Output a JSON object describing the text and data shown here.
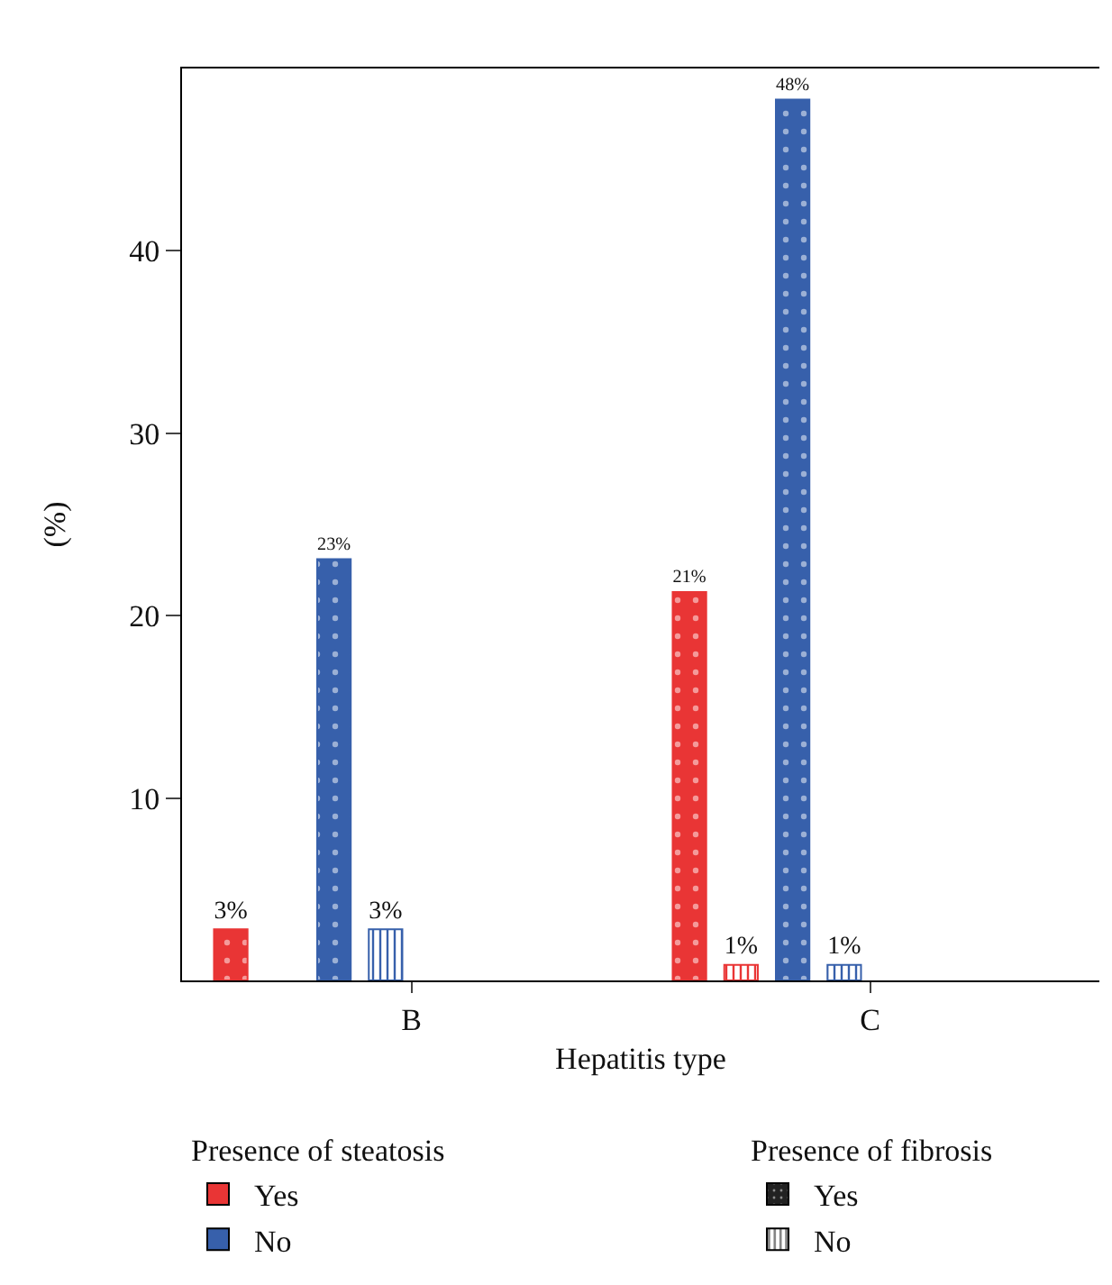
{
  "chart_data": {
    "type": "bar",
    "xlabel": "Hepatitis type",
    "ylabel": "(%)",
    "categories": [
      "B",
      "C"
    ],
    "series": [
      {
        "color": "#e93535",
        "values": [
          2.8,
          21.3
        ],
        "value_labels": [
          "3%",
          "21%"
        ]
      },
      {
        "color": "#e93535",
        "values": [
          null,
          0.85
        ],
        "value_labels": [
          null,
          "1%"
        ]
      },
      {
        "color": "#3760ab",
        "values": [
          23.1,
          48.3
        ],
        "value_labels": [
          "23%",
          "48%"
        ]
      },
      {
        "color": "#3760ab",
        "values": [
          2.8,
          0.85
        ],
        "value_labels": [
          "3%",
          "1%"
        ]
      }
    ],
    "ylim": [
      0,
      50
    ],
    "yticks": [
      10,
      20,
      30,
      40
    ],
    "annotations": [
      "Presence of steatosis",
      "Yes",
      "No",
      "Presence of fibrosis",
      "Yes",
      "No"
    ]
  }
}
